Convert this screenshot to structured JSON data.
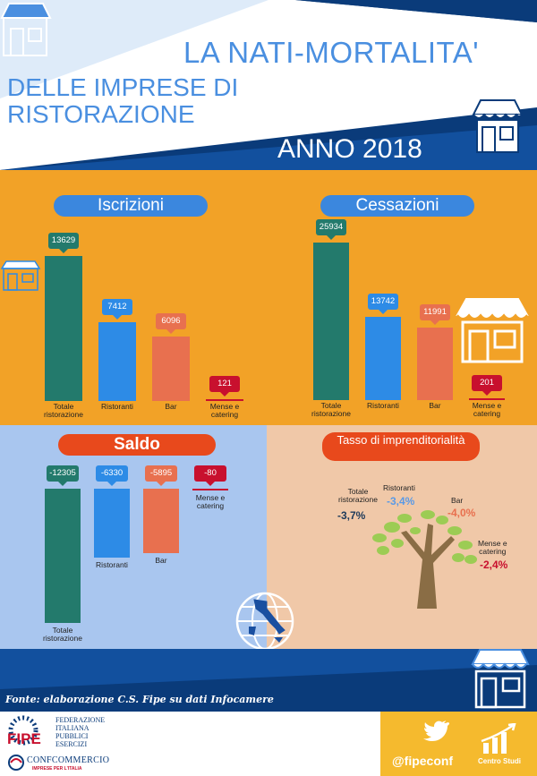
{
  "header": {
    "title_line1": "LA NATI-MORTALITA'",
    "title_line2": "DELLE IMPRESE DI",
    "title_line3": "RISTORAZIONE",
    "year": "ANNO 2018"
  },
  "colors": {
    "header_blue": "#4a8fe0",
    "orange_panel": "#f2a227",
    "teal": "#237a6c",
    "blue": "#2d8be6",
    "salmon": "#e8704f",
    "red": "#c8102e",
    "pill_blue": "#3b87de",
    "pill_red": "#e8491c",
    "navy": "#0a3b7a"
  },
  "chart_data": [
    {
      "type": "bar",
      "title": "Iscrizioni",
      "categories": [
        "Totale ristorazione",
        "Ristoranti",
        "Bar",
        "Mense e catering"
      ],
      "values": [
        13629,
        7412,
        6096,
        121
      ],
      "value_labels": [
        "13629",
        "7412",
        "6096",
        "121"
      ],
      "category_labels": [
        "Totale\nristorazione",
        "Ristoranti",
        "Bar",
        "Mense e\ncatering"
      ]
    },
    {
      "type": "bar",
      "title": "Cessazioni",
      "categories": [
        "Totale ristorazione",
        "Ristoranti",
        "Bar",
        "Mense e catering"
      ],
      "values": [
        25934,
        13742,
        11991,
        201
      ],
      "value_labels": [
        "25934",
        "13742",
        "11991",
        "201"
      ],
      "category_labels": [
        "Totale\nristorazione",
        "Ristoranti",
        "Bar",
        "Mense e\ncatering"
      ]
    },
    {
      "type": "bar",
      "title": "Saldo",
      "categories": [
        "Totale ristorazione",
        "Ristoranti",
        "Bar",
        "Mense e catering"
      ],
      "values": [
        -12305,
        -6330,
        -5895,
        -80
      ],
      "value_labels": [
        "-12305",
        "-6330",
        "-5895",
        "-80"
      ],
      "category_labels": [
        "Totale\nristorazione",
        "Ristoranti",
        "Bar",
        "Mense e\ncatering"
      ]
    },
    {
      "type": "table",
      "title": "Tasso di imprenditorialità",
      "categories": [
        "Totale ristorazione",
        "Ristoranti",
        "Bar",
        "Mense e catering"
      ],
      "values": [
        -3.7,
        -3.4,
        -4.0,
        -2.4
      ],
      "value_labels": [
        "-3,7%",
        "-3,4%",
        "-4,0%",
        "-2,4%"
      ],
      "category_labels": [
        "Totale\nristorazione",
        "Ristoranti",
        "Bar",
        "Mense e\ncatering"
      ]
    }
  ],
  "footer": {
    "source": "Fonte: elaborazione C.S. Fipe su dati Infocamere",
    "fipe_logo": "FIPE",
    "fipe_name": [
      "FEDERAZIONE",
      "ITALIANA",
      "PUBBLICI",
      "ESERCIZI"
    ],
    "confcommercio": "CONFCOMMERCIO",
    "confcommercio_sub": "IMPRESE PER L'ITALIA",
    "handle": "@fipeconf",
    "centro_studi": "Centro Studi",
    "icons": [
      "twitter-icon",
      "bar-chart-icon",
      "shop-icon",
      "tree-icon",
      "italy-globe-icon"
    ]
  }
}
